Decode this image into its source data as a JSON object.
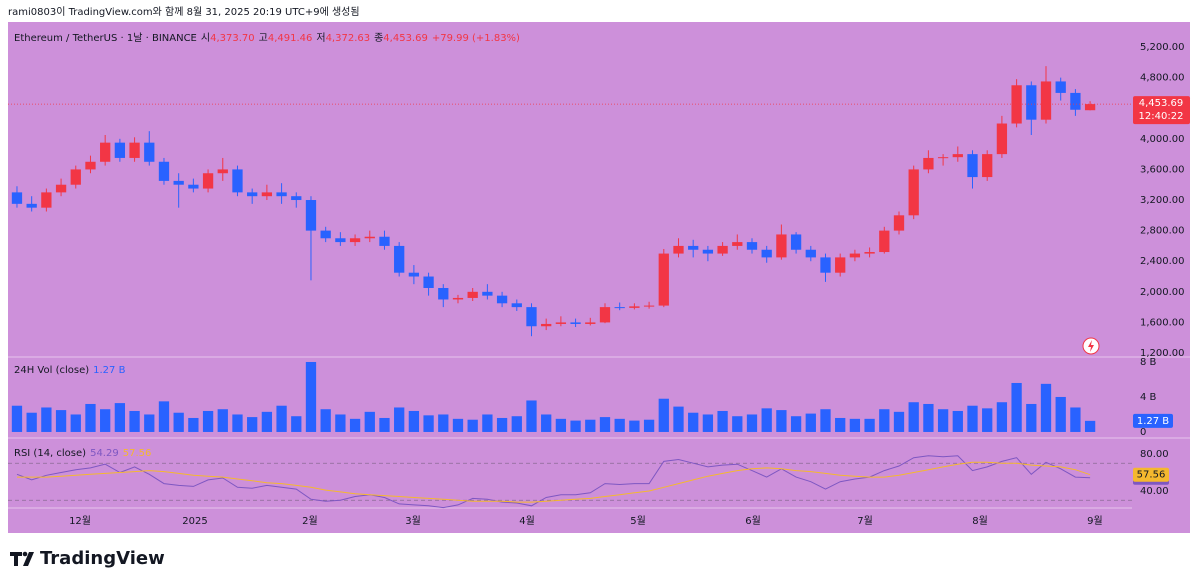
{
  "header": "rami0803이 TradingView.com와 함께 8월 31, 2025 20:19 UTC+9에 생성됨",
  "footer_logo": "TradingView",
  "chart_data": [
    {
      "type": "candlestick",
      "symbol": "Ethereum / TetherUS · 1날 · BINANCE",
      "ohlc_legend": [
        {
          "key": "시",
          "value": "4,373.70"
        },
        {
          "key": "고",
          "value": "4,491.46"
        },
        {
          "key": "저",
          "value": "4,372.63"
        },
        {
          "key": "종",
          "value": "4,453.69"
        }
      ],
      "change": "+79.99 (+1.83%)",
      "last_label": "4,453.69",
      "countdown": "12:40:22",
      "up_color": "#f23645",
      "down_color": "#2962ff",
      "open": [
        3300,
        3150,
        3100,
        3300,
        3400,
        3600,
        3700,
        3950,
        3750,
        3950,
        3700,
        3450,
        3400,
        3350,
        3550,
        3600,
        3300,
        3250,
        3300,
        3250,
        3200,
        2800,
        2700,
        2650,
        2700,
        2720,
        2600,
        2250,
        2200,
        2050,
        1900,
        1920,
        2000,
        1950,
        1850,
        1800,
        1550,
        1580,
        1600,
        1580,
        1600,
        1800,
        1790,
        1810,
        1820,
        2500,
        2600,
        2550,
        2500,
        2600,
        2650,
        2550,
        2450,
        2750,
        2550,
        2450,
        2250,
        2450,
        2500,
        2520,
        2800,
        3000,
        3600,
        3750,
        3760,
        3800,
        3500,
        3800,
        4200,
        4700,
        4250,
        4750,
        4600,
        4373.7
      ],
      "high": [
        3380,
        3250,
        3350,
        3480,
        3650,
        3780,
        4050,
        4000,
        4020,
        4100,
        3750,
        3550,
        3480,
        3600,
        3750,
        3650,
        3350,
        3400,
        3420,
        3300,
        3250,
        2850,
        2780,
        2750,
        2800,
        2800,
        2650,
        2350,
        2250,
        2100,
        1960,
        2050,
        2100,
        2000,
        1900,
        1850,
        1650,
        1680,
        1650,
        1660,
        1850,
        1860,
        1850,
        1870,
        2560,
        2700,
        2680,
        2600,
        2650,
        2750,
        2700,
        2600,
        2880,
        2780,
        2600,
        2500,
        2500,
        2550,
        2580,
        2850,
        3050,
        3650,
        3850,
        3800,
        3900,
        3850,
        3850,
        4300,
        4780,
        4750,
        4950,
        4800,
        4650,
        4491.46
      ],
      "low": [
        3100,
        3050,
        3050,
        3250,
        3350,
        3550,
        3650,
        3700,
        3700,
        3650,
        3400,
        3100,
        3300,
        3300,
        3450,
        3250,
        3150,
        3200,
        3150,
        3100,
        2150,
        2650,
        2600,
        2600,
        2650,
        2550,
        2200,
        2100,
        1950,
        1800,
        1850,
        1880,
        1900,
        1800,
        1750,
        1420,
        1500,
        1550,
        1540,
        1560,
        1590,
        1760,
        1770,
        1780,
        1800,
        2450,
        2450,
        2400,
        2470,
        2550,
        2500,
        2380,
        2420,
        2500,
        2400,
        2130,
        2200,
        2400,
        2450,
        2500,
        2750,
        2950,
        3550,
        3650,
        3700,
        3350,
        3450,
        3750,
        4150,
        4050,
        4200,
        4500,
        4300,
        4372.63
      ],
      "close": [
        3150,
        3100,
        3300,
        3400,
        3600,
        3700,
        3950,
        3750,
        3950,
        3700,
        3450,
        3400,
        3350,
        3550,
        3600,
        3300,
        3250,
        3300,
        3250,
        3200,
        2800,
        2700,
        2650,
        2700,
        2720,
        2600,
        2250,
        2200,
        2050,
        1900,
        1920,
        2000,
        1950,
        1850,
        1800,
        1550,
        1580,
        1600,
        1580,
        1600,
        1800,
        1790,
        1810,
        1820,
        2500,
        2600,
        2550,
        2500,
        2600,
        2650,
        2550,
        2450,
        2750,
        2550,
        2450,
        2250,
        2450,
        2500,
        2520,
        2800,
        3000,
        3600,
        3750,
        3760,
        3800,
        3500,
        3800,
        4200,
        4700,
        4250,
        4750,
        4600,
        4380,
        4453.69
      ],
      "ylim": [
        1148,
        5527
      ],
      "yticks": [
        {
          "value": 1200,
          "label": "1,200.00"
        },
        {
          "value": 1600,
          "label": "1,600.00"
        },
        {
          "value": 2000,
          "label": "2,000.00"
        },
        {
          "value": 2400,
          "label": "2,400.00"
        },
        {
          "value": 2800,
          "label": "2,800.00"
        },
        {
          "value": 3200,
          "label": "3,200.00"
        },
        {
          "value": 3600,
          "label": "3,600.00"
        },
        {
          "value": 4000,
          "label": "4,000.00"
        },
        {
          "value": 4400,
          "label": "4,400.00"
        },
        {
          "value": 4800,
          "label": "4,800.00"
        },
        {
          "value": 5200,
          "label": "5,200.00"
        }
      ],
      "xlim": [
        -0.61,
        75.85
      ],
      "xticks": [
        {
          "value": 4.29,
          "label": "12월"
        },
        {
          "value": 12.11,
          "label": "2025"
        },
        {
          "value": 19.93,
          "label": "2월"
        },
        {
          "value": 26.94,
          "label": "3월"
        },
        {
          "value": 34.7,
          "label": "4월"
        },
        {
          "value": 42.25,
          "label": "5월"
        },
        {
          "value": 50.07,
          "label": "6월"
        },
        {
          "value": 57.69,
          "label": "7월"
        },
        {
          "value": 65.51,
          "label": "8월"
        },
        {
          "value": 73.33,
          "label": "9월"
        }
      ]
    },
    {
      "type": "bar",
      "title": "24H Vol (close)",
      "last_label": "1.27 B",
      "color": "#2962ff",
      "values": [
        3.0,
        2.2,
        2.8,
        2.5,
        2.0,
        3.2,
        2.6,
        3.3,
        2.4,
        2.0,
        3.5,
        2.2,
        1.6,
        2.4,
        2.6,
        2.0,
        1.7,
        2.3,
        3.0,
        1.8,
        8.0,
        2.6,
        2.0,
        1.5,
        2.3,
        1.6,
        2.8,
        2.4,
        1.9,
        2.0,
        1.5,
        1.4,
        2.0,
        1.6,
        1.8,
        3.6,
        2.0,
        1.5,
        1.3,
        1.4,
        1.7,
        1.5,
        1.3,
        1.4,
        3.8,
        2.9,
        2.2,
        2.0,
        2.4,
        1.8,
        2.0,
        2.7,
        2.5,
        1.8,
        2.1,
        2.6,
        1.6,
        1.5,
        1.5,
        2.6,
        2.3,
        3.4,
        3.2,
        2.6,
        2.4,
        3.0,
        2.7,
        3.4,
        5.6,
        3.2,
        5.5,
        4.0,
        2.8,
        1.27
      ],
      "ylim": [
        -0.69,
        8.57
      ],
      "yticks": [
        0,
        {
          "value": 4,
          "label": "4 B"
        },
        {
          "value": 8,
          "label": "8 B"
        }
      ]
    },
    {
      "type": "line",
      "title": "RSI (14, close)",
      "series": [
        {
          "name": "RSI",
          "color": "#7e57c2",
          "values": [
            58,
            52,
            57,
            60,
            63,
            65,
            69,
            60,
            66,
            58,
            48,
            46,
            45,
            52,
            54,
            44,
            43,
            46,
            44,
            42,
            31,
            29,
            30,
            34,
            36,
            33,
            26,
            25,
            24,
            22,
            25,
            32,
            31,
            28,
            27,
            24,
            33,
            36,
            36,
            38,
            48,
            47,
            48,
            48,
            72,
            74,
            70,
            66,
            68,
            69,
            62,
            55,
            64,
            55,
            50,
            42,
            50,
            53,
            55,
            62,
            67,
            76,
            78,
            77,
            78,
            62,
            66,
            72,
            76,
            58,
            71,
            64,
            55,
            54.29
          ]
        },
        {
          "name": "MA",
          "color": "#f5b82e",
          "values": [
            55,
            55,
            55,
            56,
            57,
            58,
            59,
            60,
            61,
            62,
            61,
            59,
            57,
            56,
            55,
            53,
            51,
            49,
            48,
            46,
            44,
            41,
            39,
            37,
            36,
            35,
            34,
            33,
            32,
            31,
            30,
            29,
            29,
            29,
            28,
            28,
            29,
            30,
            31,
            32,
            34,
            36,
            38,
            40,
            44,
            48,
            52,
            56,
            59,
            62,
            64,
            65,
            64,
            62,
            61,
            59,
            57,
            56,
            55,
            55,
            57,
            60,
            63,
            66,
            69,
            71,
            71,
            70,
            70,
            68,
            67,
            66,
            63,
            57.56
          ]
        }
      ],
      "bands": [
        70,
        30
      ],
      "ylim": [
        21.6,
        97.3
      ],
      "yticks": [
        {
          "value": 80,
          "label": "80.00"
        },
        {
          "value": 40,
          "label": "40.00"
        }
      ]
    }
  ]
}
